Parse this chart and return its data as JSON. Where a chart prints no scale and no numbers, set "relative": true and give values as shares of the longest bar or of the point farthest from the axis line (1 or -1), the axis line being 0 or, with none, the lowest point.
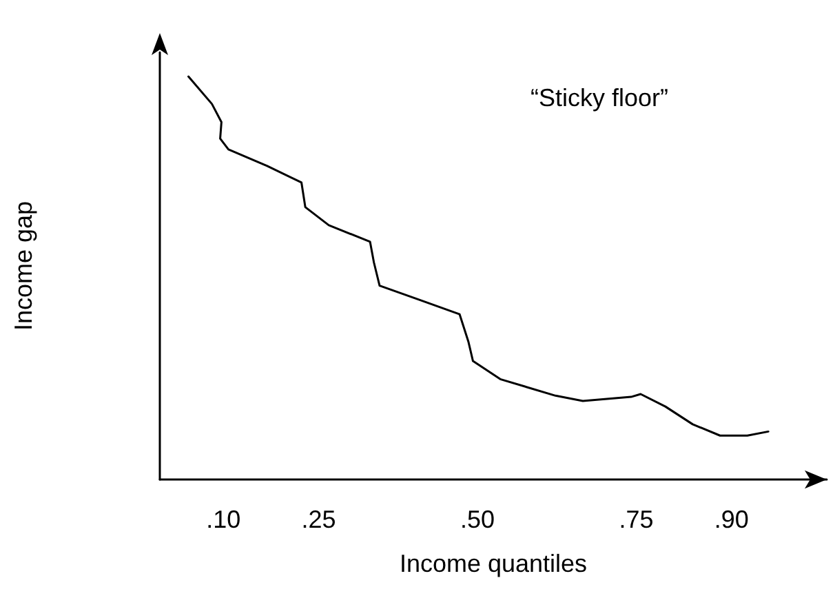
{
  "chart_data": {
    "type": "line",
    "relative": true,
    "xlabel": "Income quantiles",
    "ylabel": "Income gap",
    "annotations": [
      "“Sticky floor”"
    ],
    "xlim": [
      0,
      1.05
    ],
    "xticks": [
      {
        "value": 0.1,
        "label": ".10"
      },
      {
        "value": 0.25,
        "label": ".25"
      },
      {
        "value": 0.5,
        "label": ".50"
      },
      {
        "value": 0.75,
        "label": ".75"
      },
      {
        "value": 0.9,
        "label": ".90"
      }
    ],
    "tick_labels": "x",
    "grid": false,
    "marker": "none",
    "line_style": "solid",
    "series": [
      {
        "color": "#000000",
        "x": [
          0.045,
          0.082,
          0.097,
          0.095,
          0.108,
          0.169,
          0.223,
          0.229,
          0.266,
          0.331,
          0.337,
          0.346,
          0.407,
          0.472,
          0.486,
          0.493,
          0.536,
          0.623,
          0.666,
          0.742,
          0.757,
          0.796,
          0.839,
          0.882,
          0.925,
          0.958
        ],
        "values": [
          1.0,
          0.932,
          0.887,
          0.846,
          0.819,
          0.778,
          0.737,
          0.676,
          0.631,
          0.59,
          0.539,
          0.481,
          0.447,
          0.41,
          0.341,
          0.294,
          0.249,
          0.208,
          0.195,
          0.205,
          0.212,
          0.181,
          0.137,
          0.109,
          0.109,
          0.119
        ]
      }
    ]
  }
}
